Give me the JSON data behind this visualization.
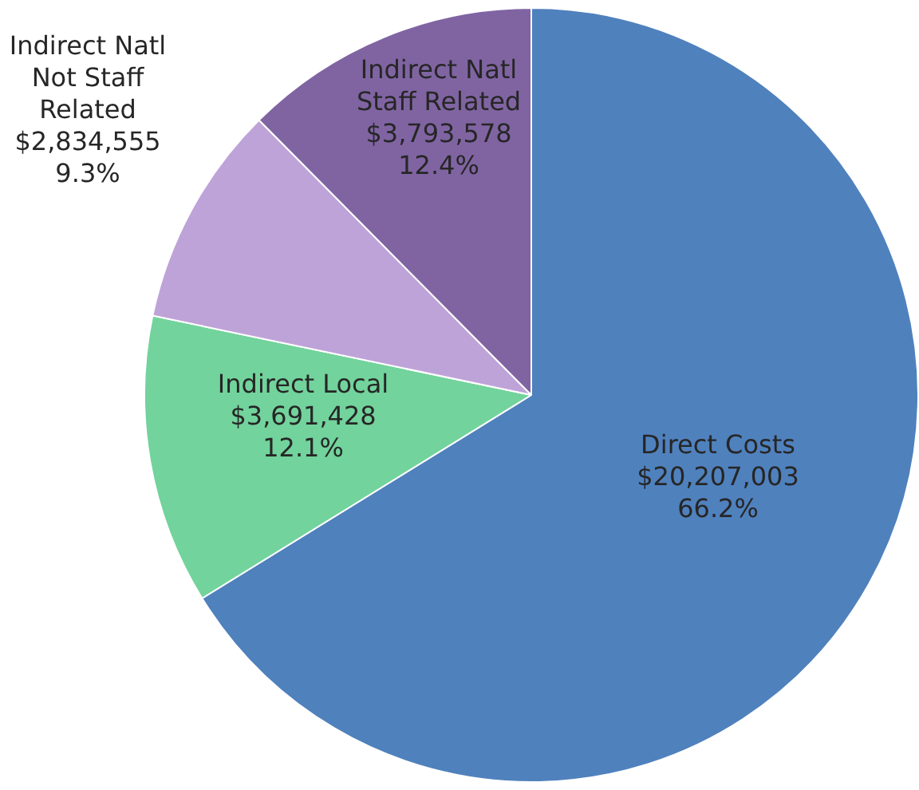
{
  "chart_data": {
    "type": "pie",
    "categories": [
      "Direct Costs",
      "Indirect Local",
      "Indirect Natl Not Staff Related",
      "Indirect Natl Staff Related"
    ],
    "values": [
      20207003,
      3691428,
      2834555,
      3793578
    ],
    "value_labels": [
      "$20,207,003 66.2%",
      "$3,691,428 12.1%",
      "$2,834,555 9.3%",
      "$3,793,578 12.4%"
    ],
    "colors": [
      "#4f81bd",
      "#72d39c",
      "#bea3d8",
      "#8064a2"
    ],
    "legend": false
  }
}
